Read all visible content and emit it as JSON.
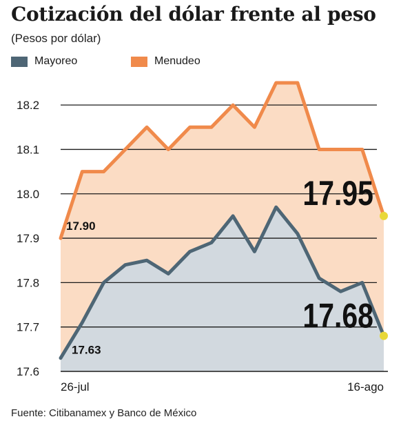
{
  "title": "Cotización del dólar frente al peso",
  "subtitle": "(Pesos por dólar)",
  "source": "Fuente: Citibanamex y Banco de México",
  "colors": {
    "mayoreo_line": "#4e6675",
    "mayoreo_fill": "#d2d9df",
    "menudeo_line": "#f08a4b",
    "menudeo_fill": "#fbdcc4",
    "end_dot": "#e8d83a",
    "gridline": "#1a1a1a"
  },
  "chart_data": {
    "type": "area",
    "legend_position": "top-left",
    "grid": "horizontal",
    "ylim": [
      17.6,
      18.25
    ],
    "yticks": [
      "17.6",
      "17.7",
      "17.8",
      "17.9",
      "18.0",
      "18.1",
      "18.2"
    ],
    "xtick_labels": [
      {
        "label": "26-jul",
        "index": 0
      },
      {
        "label": "16-ago",
        "index": 15
      }
    ],
    "series": [
      {
        "name": "Mayoreo",
        "color_key": "mayoreo",
        "values": [
          17.63,
          17.71,
          17.8,
          17.84,
          17.85,
          17.82,
          17.87,
          17.89,
          17.95,
          17.87,
          17.97,
          17.91,
          17.81,
          17.78,
          17.8,
          17.68
        ],
        "start_label": "17.63",
        "end_label": "17.68"
      },
      {
        "name": "Menudeo",
        "color_key": "menudeo",
        "values": [
          17.9,
          18.05,
          18.05,
          18.1,
          18.15,
          18.1,
          18.15,
          18.15,
          18.2,
          18.15,
          18.25,
          18.25,
          18.1,
          18.1,
          18.1,
          17.95
        ],
        "start_label": "17.90",
        "end_label": "17.95"
      }
    ]
  }
}
